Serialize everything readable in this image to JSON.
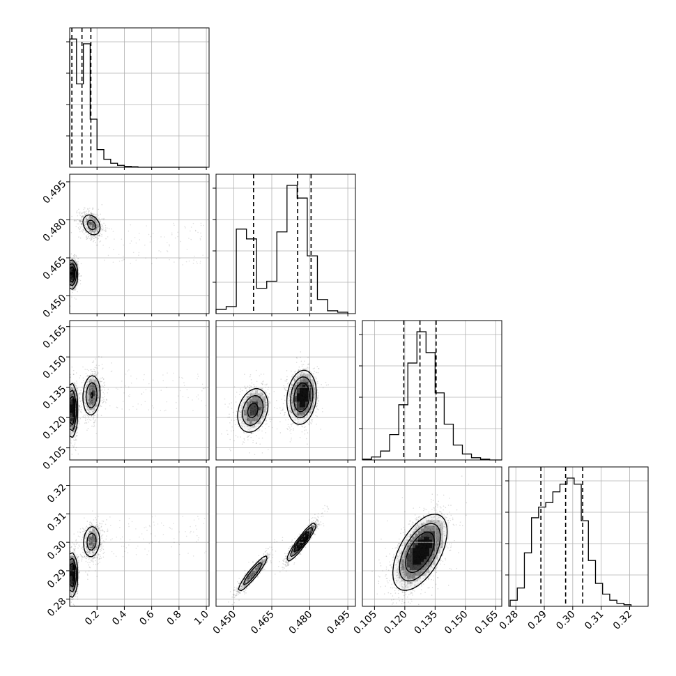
{
  "chart_data": {
    "type": "corner",
    "parameters": 4,
    "grid": true,
    "ticks": [
      [
        "0.2",
        "0.4",
        "0.6",
        "0.8",
        "1.0"
      ],
      [
        "0.450",
        "0.465",
        "0.480",
        "0.495"
      ],
      [
        "0.105",
        "0.120",
        "0.135",
        "0.150",
        "0.165"
      ],
      [
        "0.28",
        "0.29",
        "0.30",
        "0.31",
        "0.32"
      ]
    ],
    "ranges": [
      [
        0.0,
        1.02
      ],
      [
        0.443,
        0.498
      ],
      [
        0.099,
        0.168
      ],
      [
        0.2775,
        0.3265
      ]
    ],
    "quantiles": [
      [
        0.016,
        0.09,
        0.155
      ],
      [
        0.4578,
        0.4752,
        0.4805
      ],
      [
        0.1195,
        0.1275,
        0.1355
      ],
      [
        0.2888,
        0.2975,
        0.3035
      ]
    ],
    "histograms": [
      {
        "edges": [
          0.0,
          0.05,
          0.1,
          0.15,
          0.2,
          0.25,
          0.3,
          0.35,
          0.4,
          0.45,
          0.5,
          1.0
        ],
        "counts": [
          0.8,
          0.52,
          0.77,
          0.3,
          0.11,
          0.05,
          0.025,
          0.012,
          0.006,
          0.003,
          0.0
        ]
      },
      {
        "edges": [
          0.443,
          0.447,
          0.451,
          0.455,
          0.459,
          0.463,
          0.467,
          0.471,
          0.475,
          0.479,
          0.483,
          0.487,
          0.491,
          0.495
        ],
        "counts": [
          0.03,
          0.05,
          0.6,
          0.53,
          0.18,
          0.23,
          0.58,
          0.91,
          0.82,
          0.41,
          0.1,
          0.02,
          0.01
        ]
      },
      {
        "edges": [
          0.099,
          0.1035,
          0.108,
          0.1125,
          0.117,
          0.1215,
          0.126,
          0.1305,
          0.135,
          0.1395,
          0.144,
          0.1485,
          0.153,
          0.1575,
          0.162,
          0.168
        ],
        "counts": [
          0.005,
          0.02,
          0.06,
          0.17,
          0.37,
          0.65,
          0.86,
          0.72,
          0.45,
          0.24,
          0.1,
          0.04,
          0.015,
          0.005,
          0.0
        ]
      },
      {
        "edges": [
          0.278,
          0.2805,
          0.283,
          0.2855,
          0.288,
          0.2905,
          0.293,
          0.2955,
          0.298,
          0.3005,
          0.303,
          0.3055,
          0.308,
          0.3105,
          0.313,
          0.3155,
          0.318,
          0.3205
        ],
        "counts": [
          0.04,
          0.12,
          0.35,
          0.58,
          0.65,
          0.68,
          0.75,
          0.8,
          0.84,
          0.8,
          0.56,
          0.3,
          0.15,
          0.08,
          0.04,
          0.02,
          0.01
        ]
      }
    ],
    "pairs": [
      {
        "i": 1,
        "j": 0,
        "modes": [
          {
            "x": 0.015,
            "y": 0.4584,
            "sx": 0.02,
            "sy": 0.0028,
            "rho": 0.0,
            "w": 0.6
          },
          {
            "x": 0.16,
            "y": 0.478,
            "sx": 0.04,
            "sy": 0.0025,
            "rho": -0.3,
            "w": 0.4
          }
        ]
      },
      {
        "i": 2,
        "j": 0,
        "modes": [
          {
            "x": 0.015,
            "y": 0.1235,
            "sx": 0.02,
            "sy": 0.0065,
            "rho": 0.0,
            "w": 0.55
          },
          {
            "x": 0.16,
            "y": 0.131,
            "sx": 0.035,
            "sy": 0.0055,
            "rho": 0.1,
            "w": 0.45
          }
        ]
      },
      {
        "i": 2,
        "j": 1,
        "modes": [
          {
            "x": 0.4575,
            "y": 0.1235,
            "sx": 0.0032,
            "sy": 0.0058,
            "rho": 0.25,
            "w": 0.4
          },
          {
            "x": 0.4768,
            "y": 0.13,
            "sx": 0.0028,
            "sy": 0.0065,
            "rho": 0.15,
            "w": 0.6
          }
        ]
      },
      {
        "i": 3,
        "j": 0,
        "modes": [
          {
            "x": 0.015,
            "y": 0.2885,
            "sx": 0.02,
            "sy": 0.0038,
            "rho": 0.0,
            "w": 0.6
          },
          {
            "x": 0.16,
            "y": 0.3002,
            "sx": 0.035,
            "sy": 0.0032,
            "rho": 0.1,
            "w": 0.4
          }
        ]
      },
      {
        "i": 3,
        "j": 1,
        "modes": [
          {
            "x": 0.4575,
            "y": 0.289,
            "sx": 0.0032,
            "sy": 0.0035,
            "rho": 0.93,
            "w": 0.4
          },
          {
            "x": 0.4768,
            "y": 0.3002,
            "sx": 0.0028,
            "sy": 0.0033,
            "rho": 0.93,
            "w": 0.6
          }
        ]
      },
      {
        "i": 3,
        "j": 2,
        "modes": [
          {
            "x": 0.1275,
            "y": 0.2965,
            "sx": 0.0065,
            "sy": 0.0065,
            "rho": 0.55,
            "w": 1.0
          }
        ]
      }
    ]
  }
}
